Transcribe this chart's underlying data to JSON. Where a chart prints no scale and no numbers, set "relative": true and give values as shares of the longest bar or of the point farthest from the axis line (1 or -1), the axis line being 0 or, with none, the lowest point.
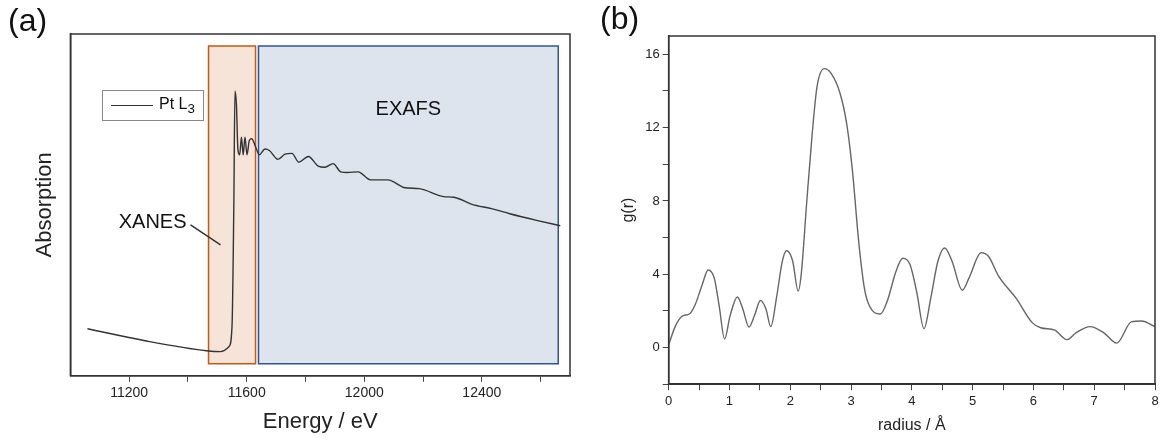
{
  "chart_data": [
    {
      "type": "line",
      "title": "(a)",
      "xlabel": "Energy / eV",
      "ylabel": "Absorption",
      "relative": true,
      "grid": false,
      "legend": "top left",
      "marker": "none",
      "xlim": [
        11000,
        12700
      ],
      "xticks": [
        11200,
        {
          "value": 11400,
          "label": null
        },
        11600,
        {
          "value": 11800,
          "label": null
        },
        12000,
        {
          "value": 12200,
          "label": null
        },
        12400,
        {
          "value": 12600,
          "label": null
        }
      ],
      "bands": [
        {
          "axis": "x",
          "from": 11470,
          "to": 11630,
          "label": "XANES",
          "color": "#c55a11"
        },
        {
          "axis": "x",
          "from": 11640,
          "to": 12660,
          "label": "EXAFS",
          "color": "#2f5597"
        }
      ],
      "series": [
        {
          "name": "Pt L$_{3}$",
          "color": "#333333",
          "x": [
            11058,
            11250,
            11463,
            11511,
            11540,
            11550,
            11556,
            11560,
            11565,
            11570,
            11576,
            11582,
            11588,
            11594,
            11601,
            11609,
            11617,
            11629,
            11643,
            11662,
            11677,
            11706,
            11730,
            11754,
            11777,
            11810,
            11843,
            11866,
            11894,
            11920,
            11943,
            11979,
            12021,
            12080,
            12139,
            12187,
            12270,
            12305,
            12364,
            12436,
            12495,
            12590,
            12667
          ],
          "values": [
            0.165,
            0.124,
            0.088,
            0.085,
            0.103,
            0.176,
            0.589,
            1.0,
            0.951,
            0.796,
            0.776,
            0.838,
            0.776,
            0.838,
            0.776,
            0.827,
            0.832,
            0.807,
            0.776,
            0.796,
            0.791,
            0.76,
            0.778,
            0.781,
            0.75,
            0.77,
            0.736,
            0.732,
            0.745,
            0.716,
            0.714,
            0.716,
            0.688,
            0.688,
            0.66,
            0.657,
            0.629,
            0.627,
            0.603,
            0.586,
            0.569,
            0.545,
            0.527
          ]
        }
      ]
    },
    {
      "type": "line",
      "title": "(b)",
      "xlabel": "radius / Å",
      "ylabel": "g(r)",
      "grid": false,
      "legend": false,
      "marker": "none",
      "xlim": [
        0,
        8
      ],
      "ylim": [
        -2,
        17
      ],
      "xticks": [
        0,
        {
          "value": 0.5,
          "label": null
        },
        1,
        {
          "value": 1.5,
          "label": null
        },
        2,
        {
          "value": 2.5,
          "label": null
        },
        3,
        {
          "value": 3.5,
          "label": null
        },
        4,
        {
          "value": 4.5,
          "label": null
        },
        5,
        {
          "value": 5.5,
          "label": null
        },
        6,
        {
          "value": 6.5,
          "label": null
        },
        7,
        {
          "value": 7.5,
          "label": null
        },
        8
      ],
      "yticks": [
        {
          "value": -2,
          "label": null
        },
        0,
        {
          "value": 2,
          "label": null
        },
        4,
        {
          "value": 6,
          "label": null
        },
        8,
        {
          "value": 10,
          "label": null
        },
        12,
        {
          "value": 14,
          "label": null
        },
        16
      ],
      "series": [
        {
          "color": "#666666",
          "x": [
            0,
            0.11,
            0.23,
            0.34,
            0.43,
            0.55,
            0.65,
            0.75,
            0.83,
            0.92,
            1.01,
            1.13,
            1.22,
            1.32,
            1.41,
            1.51,
            1.6,
            1.68,
            1.78,
            1.87,
            1.94,
            2.04,
            2.13,
            2.18,
            2.27,
            2.36,
            2.44,
            2.56,
            2.67,
            2.82,
            2.93,
            3.02,
            3.13,
            3.22,
            3.3,
            3.48,
            3.59,
            3.74,
            3.85,
            3.97,
            4.08,
            4.2,
            4.31,
            4.43,
            4.54,
            4.66,
            4.83,
            4.94,
            5.14,
            5.26,
            5.43,
            5.72,
            5.98,
            6.12,
            6.35,
            6.55,
            6.7,
            6.93,
            7.16,
            7.37,
            7.61,
            7.78,
            8.0
          ],
          "values": [
            0.15,
            1.17,
            1.73,
            1.83,
            2.29,
            3.41,
            4.23,
            3.79,
            2.29,
            0.47,
            1.73,
            2.76,
            2.11,
            1.12,
            1.73,
            2.57,
            2.11,
            1.14,
            2.85,
            4.72,
            5.28,
            4.72,
            3.08,
            3.97,
            7.89,
            11.62,
            14.23,
            15.22,
            14.97,
            13.86,
            12.18,
            9.75,
            5.65,
            3.23,
            2.29,
            1.83,
            2.48,
            4.16,
            4.87,
            4.53,
            3.04,
            1.03,
            2.67,
            4.72,
            5.43,
            4.72,
            3.13,
            3.79,
            5.18,
            4.98,
            3.88,
            2.67,
            1.36,
            1.08,
            0.95,
            0.43,
            0.8,
            1.14,
            0.8,
            0.24,
            1.4,
            1.45,
            1.14
          ]
        }
      ]
    }
  ]
}
